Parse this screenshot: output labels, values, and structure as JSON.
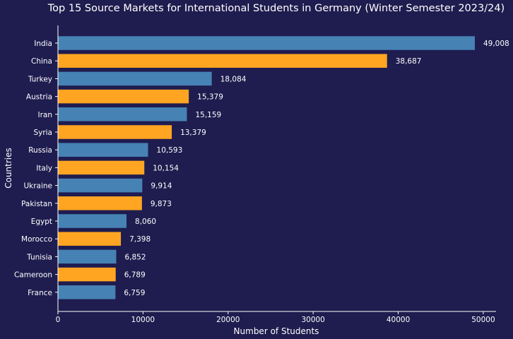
{
  "chart_data": {
    "type": "bar",
    "orientation": "horizontal",
    "title": "Top 15 Source Markets for International Students in Germany (Winter Semester 2023/24)",
    "xlabel": "Number of Students",
    "ylabel": "Countries",
    "categories": [
      "India",
      "China",
      "Turkey",
      "Austria",
      "Iran",
      "Syria",
      "Russia",
      "Italy",
      "Ukraine",
      "Pakistan",
      "Egypt",
      "Morocco",
      "Tunisia",
      "Cameroon",
      "France"
    ],
    "values": [
      49008,
      38687,
      18084,
      15379,
      15159,
      13379,
      10593,
      10154,
      9914,
      9873,
      8060,
      7398,
      6852,
      6789,
      6759
    ],
    "value_labels": [
      "49,008",
      "38,687",
      "18,084",
      "15,379",
      "15,159",
      "13,379",
      "10,593",
      "10,154",
      "9,914",
      "9,873",
      "8,060",
      "7,398",
      "6,852",
      "6,789",
      "6,759"
    ],
    "xlim": [
      0,
      51500
    ],
    "xticks": [
      0,
      10000,
      20000,
      30000,
      40000,
      50000
    ],
    "xtick_labels": [
      "0",
      "10000",
      "20000",
      "30000",
      "40000",
      "50000"
    ],
    "colors": [
      "#4682b4",
      "#ffa522"
    ],
    "color_pattern": "alternating",
    "grid": false,
    "legend": "none"
  }
}
